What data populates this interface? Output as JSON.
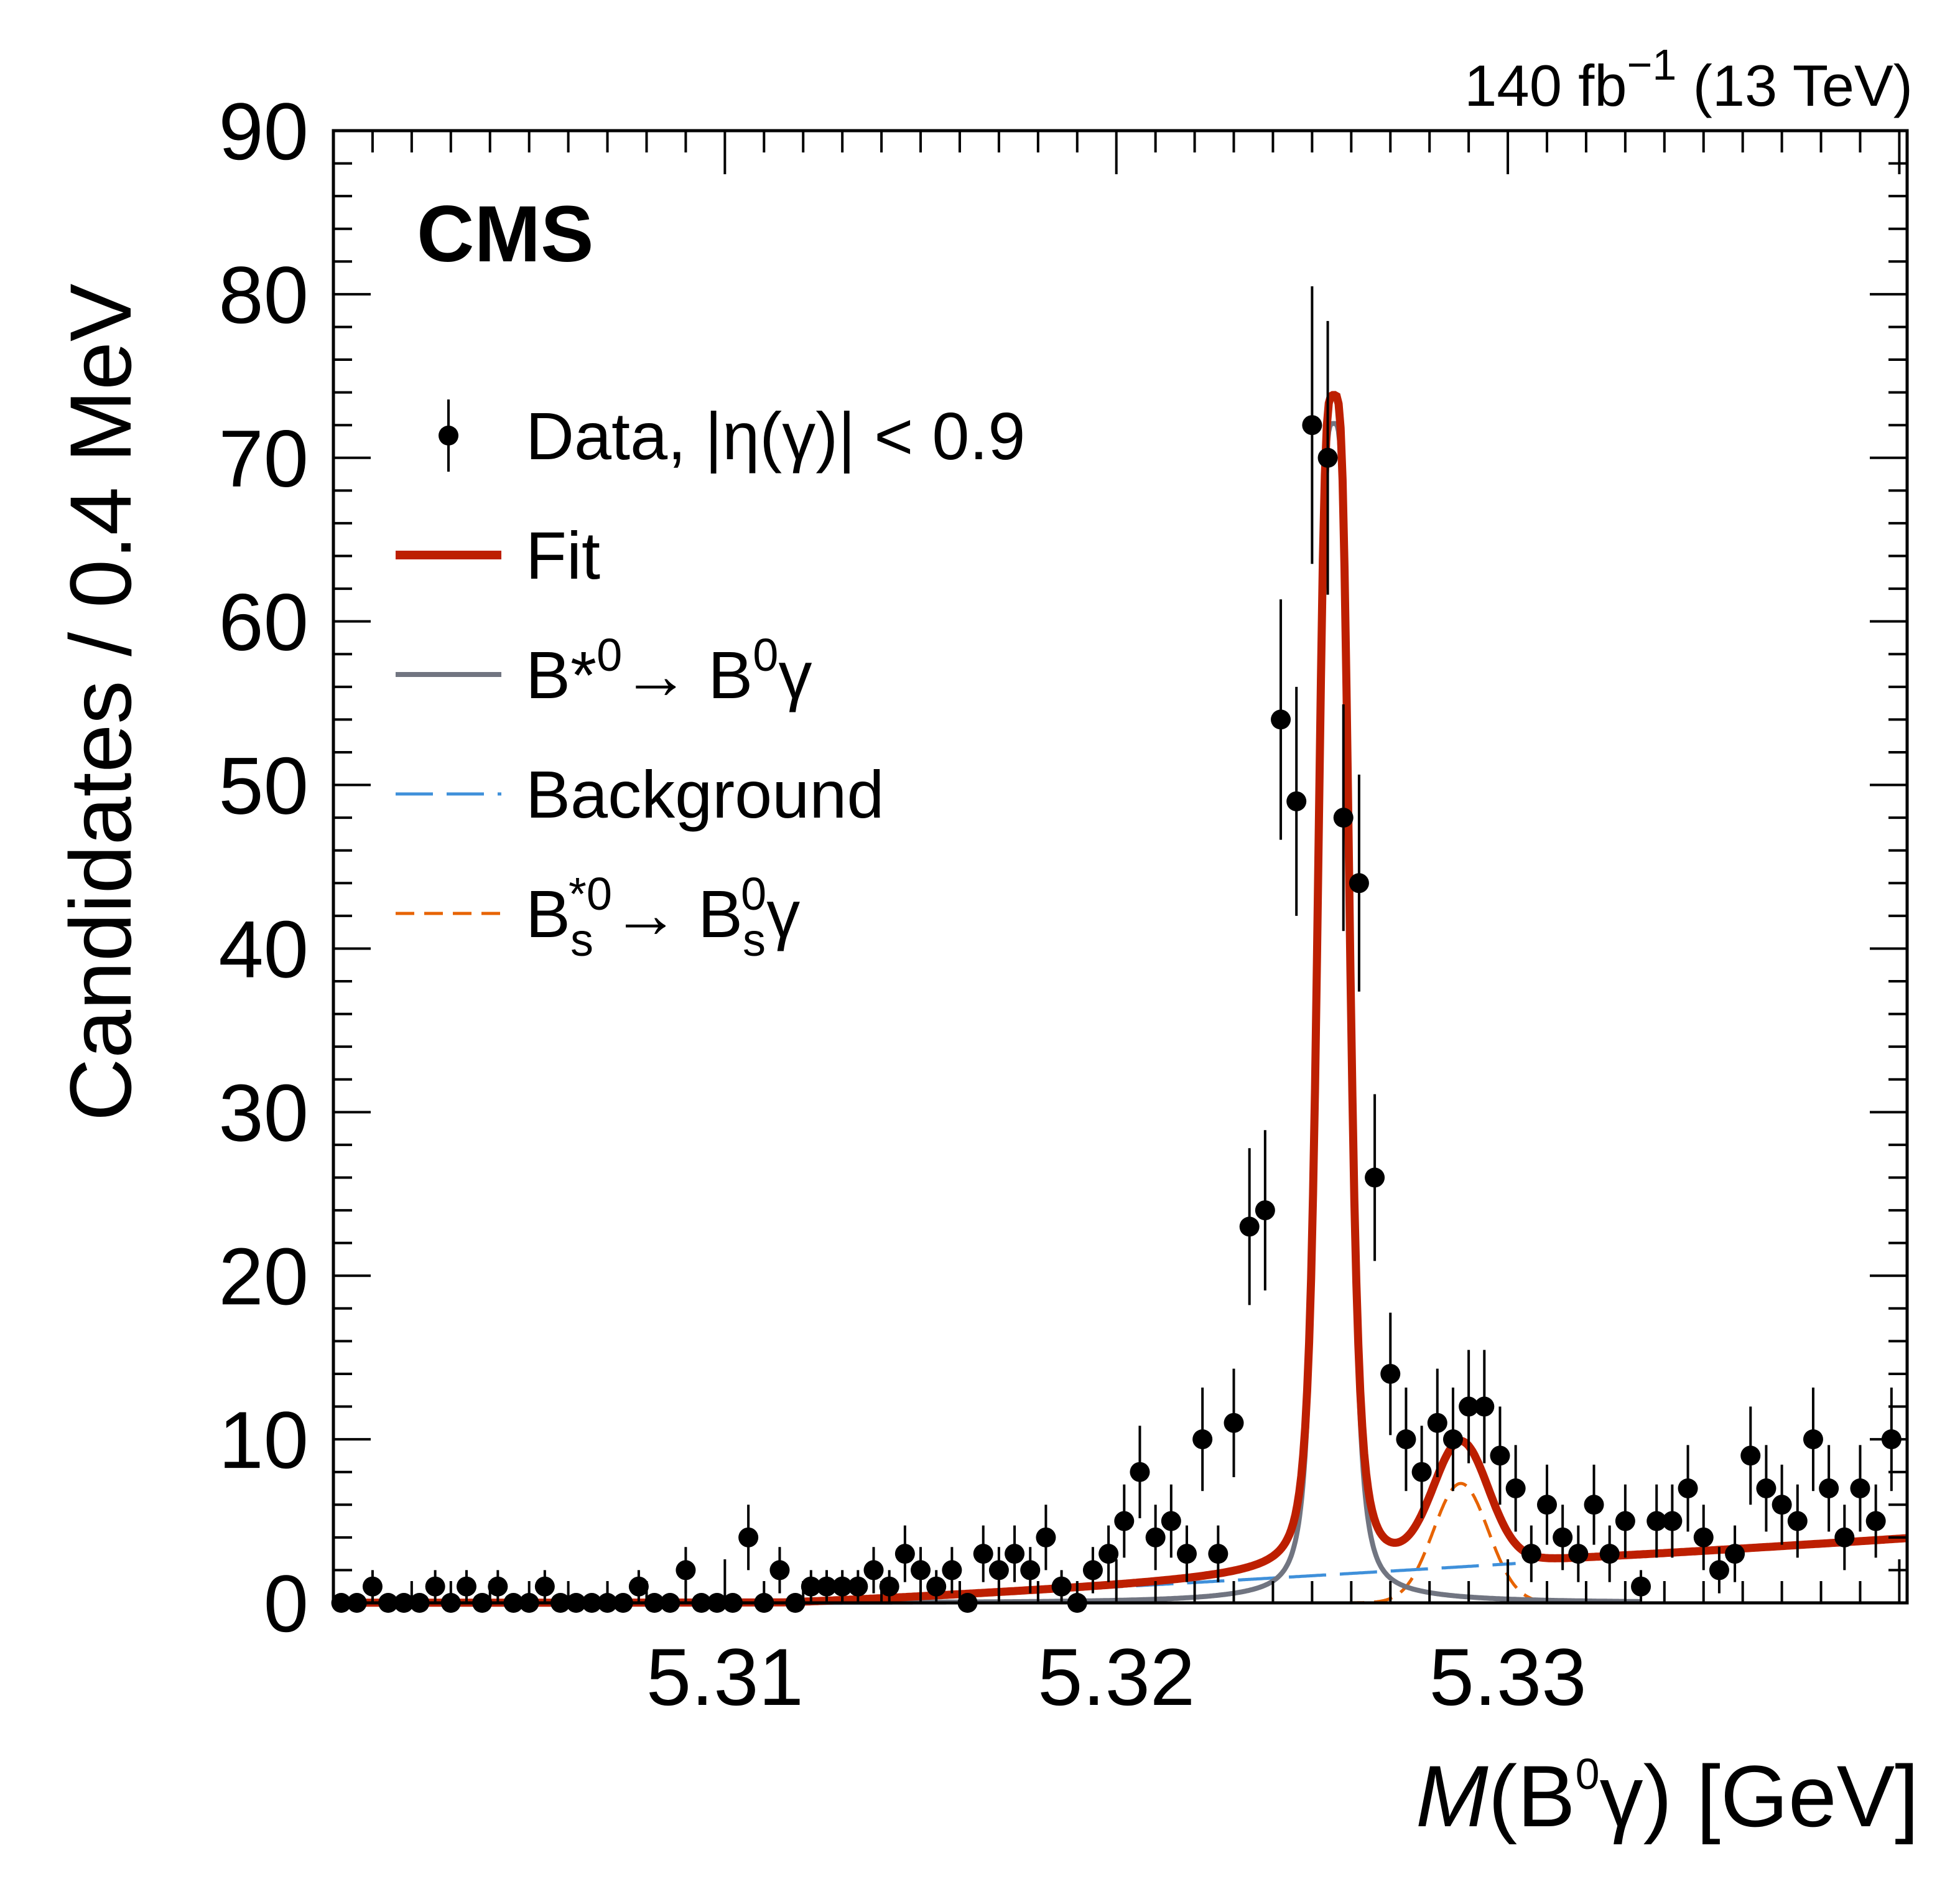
{
  "chart_data": {
    "type": "scatter",
    "experiment": "CMS",
    "lumi": {
      "text": "140 fb",
      "sup": "−1",
      "energy": " (13 TeV)"
    },
    "xlabel": {
      "italic": "M",
      "open": "(B",
      "sup": "0",
      "rest": "γ) [GeV]"
    },
    "ylabel": "Candidates / 0.4 MeV",
    "xlim": [
      5.3,
      5.3402
    ],
    "ylim": [
      0,
      90
    ],
    "xticks": [
      5.31,
      5.32,
      5.33
    ],
    "yticks": [
      0,
      10,
      20,
      30,
      40,
      50,
      60,
      70,
      80,
      90
    ],
    "legend_position": "upper-left",
    "legend": [
      {
        "key": "data",
        "label": "Data, |η(γ)| < 0.9"
      },
      {
        "key": "fit",
        "label": "Fit"
      },
      {
        "key": "sig",
        "label": "B*⁰→ B⁰γ",
        "parts": [
          {
            "t": "B*"
          },
          {
            "t": "0",
            "s": "sup"
          },
          {
            "t": "→ B"
          },
          {
            "t": "0",
            "s": "sup"
          },
          {
            "t": "γ"
          }
        ]
      },
      {
        "key": "bkg",
        "label": "Background"
      },
      {
        "key": "bs",
        "label": "Bs*⁰→ Bs⁰γ",
        "parts": [
          {
            "t": "B"
          },
          {
            "t": "s",
            "s": "sub"
          },
          {
            "t": "*0",
            "s": "sup",
            "dx": -40
          },
          {
            "t": "→ B"
          },
          {
            "t": "s",
            "s": "sub"
          },
          {
            "t": "0",
            "s": "sup",
            "dx": -40
          },
          {
            "t": "γ"
          }
        ]
      }
    ],
    "colors": {
      "fit": "#bd1f01",
      "signal": "#717581",
      "background": "#3f90da",
      "bs": "#e76300",
      "data": "#000000"
    },
    "series": [
      {
        "name": "Data, |η(γ)| < 0.9",
        "x": [
          5.3002,
          5.3006,
          5.301,
          5.3014,
          5.3018,
          5.3022,
          5.3026,
          5.303,
          5.3034,
          5.3038,
          5.3042,
          5.3046,
          5.305,
          5.3054,
          5.3058,
          5.3062,
          5.3066,
          5.307,
          5.3074,
          5.3078,
          5.3082,
          5.3086,
          5.309,
          5.3094,
          5.3098,
          5.3102,
          5.3106,
          5.311,
          5.3114,
          5.3118,
          5.3122,
          5.3126,
          5.313,
          5.3134,
          5.3138,
          5.3142,
          5.3146,
          5.315,
          5.3154,
          5.3158,
          5.3162,
          5.3166,
          5.317,
          5.3174,
          5.3178,
          5.3182,
          5.3186,
          5.319,
          5.3194,
          5.3198,
          5.3202,
          5.3206,
          5.321,
          5.3214,
          5.3218,
          5.3222,
          5.3226,
          5.323,
          5.3234,
          5.3238,
          5.3242,
          5.3246,
          5.325,
          5.3254,
          5.3258,
          5.3262,
          5.3266,
          5.327,
          5.3274,
          5.3278,
          5.3282,
          5.3286,
          5.329,
          5.3294,
          5.3298,
          5.3302,
          5.3306,
          5.331,
          5.3314,
          5.3318,
          5.3322,
          5.3326,
          5.333,
          5.3334,
          5.3338,
          5.3342,
          5.3346,
          5.335,
          5.3354,
          5.3358,
          5.3362,
          5.3366,
          5.337,
          5.3374,
          5.3378,
          5.3382,
          5.3386,
          5.339,
          5.3394,
          5.3398
        ],
        "y": [
          0,
          0,
          1,
          0,
          0,
          0,
          1,
          0,
          1,
          0,
          1,
          0,
          0,
          1,
          0,
          0,
          0,
          0,
          0,
          1,
          0,
          0,
          2,
          0,
          0,
          0,
          4,
          0,
          2,
          0,
          1,
          1,
          1,
          1,
          2,
          1,
          3,
          2,
          1,
          2,
          0,
          3,
          2,
          3,
          2,
          4,
          1,
          0,
          2,
          3,
          5,
          8,
          4,
          5,
          3,
          10,
          3,
          11,
          23,
          24,
          54,
          49,
          72,
          70,
          48,
          44,
          26,
          14,
          10,
          8,
          11,
          10,
          12,
          12,
          9,
          7,
          3,
          6,
          4,
          3,
          6,
          3,
          5,
          1,
          5,
          5,
          7,
          4,
          2,
          3,
          9,
          7,
          6,
          5,
          10,
          7,
          4,
          7,
          5,
          10
        ]
      },
      {
        "name": "Fit"
      },
      {
        "name": "B*⁰→ B⁰γ"
      },
      {
        "name": "Background"
      },
      {
        "name": "Bs*⁰→ Bs⁰γ"
      }
    ]
  }
}
